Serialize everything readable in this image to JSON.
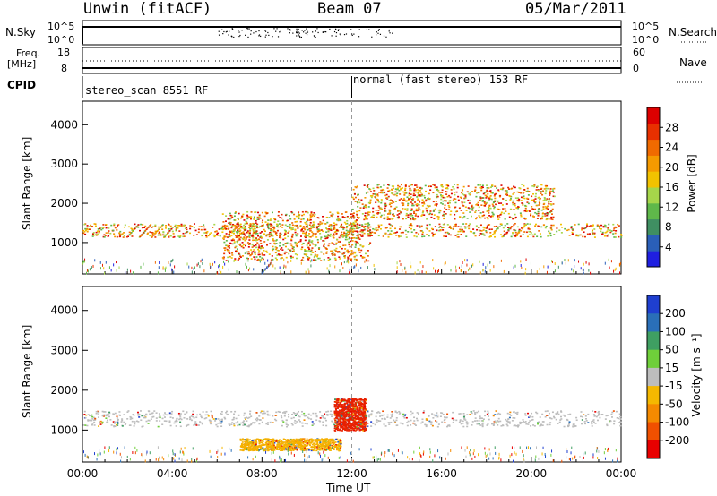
{
  "header": {
    "station": "Unwin (fitACF)",
    "beam": "Beam 07",
    "date": "05/Mar/2011"
  },
  "panels": {
    "nsky": {
      "label": "N.Sky",
      "left_ticks": [
        "10^5",
        "10^0"
      ],
      "right_ticks": [
        "10^5",
        "10^0"
      ],
      "right_label": "N.Search"
    },
    "freq": {
      "label_line1": "Freq.",
      "label_line2": "[MHz]",
      "left_ticks": [
        "18",
        "8"
      ],
      "right_ticks": [
        "60",
        "0"
      ],
      "right_label": "Nave"
    },
    "cpid": {
      "label": "CPID",
      "mode1": "stereo_scan 8551 RF",
      "mode2": "normal (fast stereo) 153 RF"
    }
  },
  "chart_data": [
    {
      "type": "heatmap",
      "title": "",
      "ylabel": "Slant Range [km]",
      "xlabel": "",
      "x_ticks": [
        "00:00",
        "04:00",
        "08:00",
        "12:00",
        "16:00",
        "20:00",
        "00:00"
      ],
      "y_ticks": [
        1000,
        2000,
        3000,
        4000
      ],
      "ylim": [
        200,
        4600
      ],
      "xlim_hours": [
        0,
        24
      ],
      "colorbar": {
        "label": "Power [dB]",
        "ticks": [
          4,
          8,
          12,
          16,
          20,
          24,
          28
        ],
        "colors": [
          "#1f1fe0",
          "#2a5fb8",
          "#3f8f62",
          "#5fb84a",
          "#a6d64a",
          "#f2c200",
          "#f59a00",
          "#f06a00",
          "#e83000",
          "#dd0000"
        ]
      },
      "features": [
        {
          "name": "main-band",
          "t_start": 0,
          "t_end": 24,
          "range_start": 1150,
          "range_end": 1500
        },
        {
          "name": "inner-arc",
          "t_start": 6.2,
          "t_end": 12.8,
          "range_start": 550,
          "range_end": 1800
        },
        {
          "name": "upper-scatter",
          "t_start": 12,
          "t_end": 21,
          "range_start": 1600,
          "range_end": 2500
        }
      ]
    },
    {
      "type": "heatmap",
      "title": "",
      "ylabel": "Slant Range [km]",
      "xlabel": "Time UT",
      "x_ticks": [
        "00:00",
        "04:00",
        "08:00",
        "12:00",
        "16:00",
        "20:00",
        "00:00"
      ],
      "y_ticks": [
        1000,
        2000,
        3000,
        4000
      ],
      "ylim": [
        200,
        4600
      ],
      "xlim_hours": [
        0,
        24
      ],
      "colorbar": {
        "label": "Velocity [m s⁻¹]",
        "ticks": [
          200,
          100,
          50,
          15,
          -15,
          -50,
          -100,
          -200
        ],
        "colors": [
          "#1f3fd0",
          "#2a6fb8",
          "#3f9f62",
          "#6fcf3a",
          "#bdbdbd",
          "#f5b800",
          "#f58a00",
          "#f05000",
          "#e80000"
        ]
      },
      "features": [
        {
          "name": "ground-scatter-grey",
          "t_start": 0,
          "t_end": 24,
          "range_start": 1100,
          "range_end": 1500,
          "color": "#bdbdbd"
        },
        {
          "name": "orange-arc",
          "t_start": 7.0,
          "t_end": 11.5,
          "range_start": 500,
          "range_end": 800,
          "color": "#f5b000"
        },
        {
          "name": "red-feature",
          "t_start": 11.2,
          "t_end": 12.6,
          "range_start": 1000,
          "range_end": 1800,
          "color": "#e82000"
        }
      ]
    }
  ]
}
